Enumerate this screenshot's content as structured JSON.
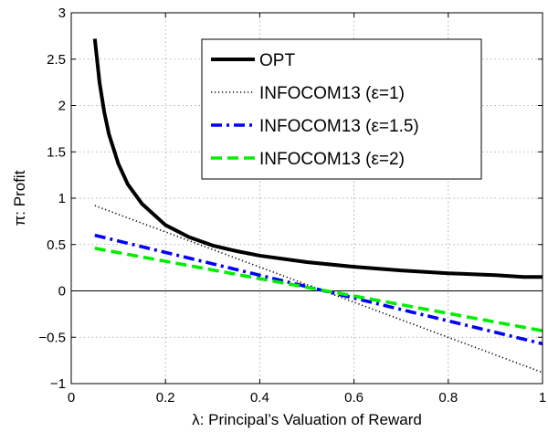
{
  "chart_data": {
    "type": "line",
    "title": "",
    "xlabel": "λ: Principal’s Valuation of Reward",
    "ylabel": "π: Profit",
    "xlim": [
      0,
      1
    ],
    "ylim": [
      -1,
      3
    ],
    "x_ticks": [
      0,
      0.2,
      0.4,
      0.6,
      0.8,
      1
    ],
    "x_tick_labels": [
      "0",
      "0.2",
      "0.4",
      "0.6",
      "0.8",
      "1"
    ],
    "y_ticks": [
      -1,
      -0.5,
      0,
      0.5,
      1,
      1.5,
      2,
      2.5,
      3
    ],
    "y_tick_labels": [
      "−1",
      "−0.5",
      "0",
      "0.5",
      "1",
      "1.5",
      "2",
      "2.5",
      "3"
    ],
    "grid": true,
    "zero_line": true,
    "legend_position": "top-right",
    "series": [
      {
        "name": "OPT",
        "color": "#000000",
        "style": "solid",
        "x": [
          0.05,
          0.06,
          0.07,
          0.08,
          0.1,
          0.12,
          0.15,
          0.2,
          0.25,
          0.3,
          0.35,
          0.4,
          0.5,
          0.6,
          0.7,
          0.8,
          0.9,
          0.96,
          1.0
        ],
        "y": [
          2.72,
          2.25,
          1.93,
          1.69,
          1.37,
          1.15,
          0.94,
          0.71,
          0.58,
          0.49,
          0.43,
          0.38,
          0.31,
          0.26,
          0.22,
          0.19,
          0.17,
          0.15,
          0.15
        ]
      },
      {
        "name": "INFOCOM13 (ε=1)",
        "color": "#000000",
        "style": "dotted",
        "x": [
          0.05,
          1.0
        ],
        "y": [
          0.92,
          -0.88
        ]
      },
      {
        "name": "INFOCOM13 (ε=1.5)",
        "color": "#0000ff",
        "style": "dashdot",
        "x": [
          0.05,
          1.0
        ],
        "y": [
          0.6,
          -0.57
        ]
      },
      {
        "name": "INFOCOM13 (ε=2)",
        "color": "#00ee00",
        "style": "dashed",
        "x": [
          0.05,
          1.0
        ],
        "y": [
          0.46,
          -0.43
        ]
      }
    ]
  }
}
